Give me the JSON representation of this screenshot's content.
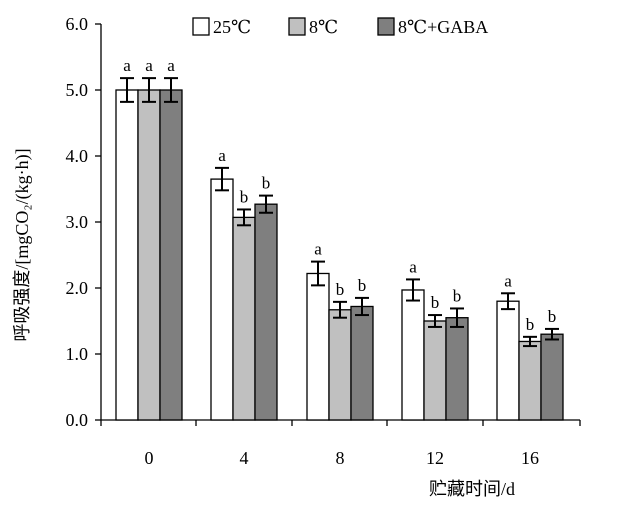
{
  "chart_data": {
    "type": "bar",
    "xlabel": "贮藏时间/d",
    "ylabel": "呼吸强度/[mgCO₂/(kg·h)]",
    "ylim": [
      0,
      6
    ],
    "yticks": [
      "0.0",
      "1.0",
      "2.0",
      "3.0",
      "4.0",
      "5.0",
      "6.0"
    ],
    "categories": [
      "0",
      "4",
      "8",
      "12",
      "16"
    ],
    "grid": false,
    "legend_position": "top-center",
    "error_bars": true,
    "series": [
      {
        "name": "25℃",
        "color": "#ffffff",
        "values": [
          5.0,
          3.65,
          2.22,
          1.97,
          1.8
        ],
        "errors": [
          0.18,
          0.17,
          0.18,
          0.16,
          0.12
        ],
        "labels": [
          "a",
          "a",
          "a",
          "a",
          "a"
        ]
      },
      {
        "name": "8℃",
        "color": "#c0c0c0",
        "values": [
          5.0,
          3.07,
          1.67,
          1.5,
          1.19
        ],
        "errors": [
          0.18,
          0.12,
          0.12,
          0.09,
          0.07
        ],
        "labels": [
          "a",
          "b",
          "b",
          "b",
          "b"
        ]
      },
      {
        "name": "8℃+GABA",
        "color": "#7f7f7f",
        "values": [
          5.0,
          3.27,
          1.72,
          1.55,
          1.3
        ],
        "errors": [
          0.18,
          0.13,
          0.13,
          0.14,
          0.08
        ],
        "labels": [
          "a",
          "b",
          "b",
          "b",
          "b"
        ]
      }
    ]
  }
}
